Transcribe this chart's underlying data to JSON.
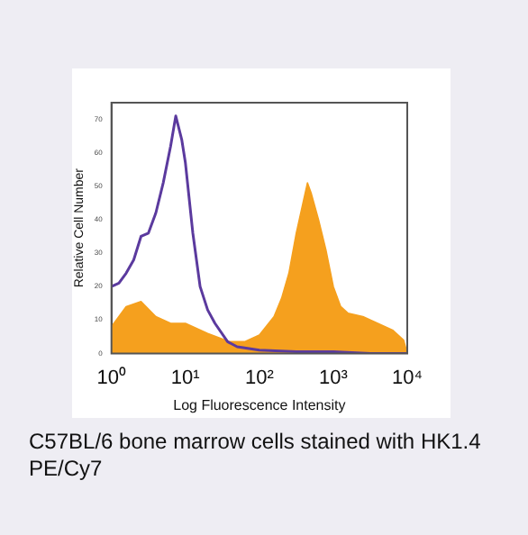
{
  "chart_data": {
    "type": "area",
    "xlabel": "Log Fluorescence Intensity",
    "ylabel": "Relative Cell Number",
    "log": "x",
    "grid": false,
    "legend": false,
    "marker": "none",
    "xlim": [
      1,
      10000
    ],
    "xticks": [
      {
        "value": 1,
        "label": "10⁰"
      },
      {
        "value": 10,
        "label": "10¹"
      },
      {
        "value": 100,
        "label": "10²"
      },
      {
        "value": 1000,
        "label": "10³"
      },
      {
        "value": 10000,
        "label": "10⁴"
      }
    ],
    "ylim": [
      0,
      75
    ],
    "yticks": [
      0,
      10,
      20,
      30,
      40,
      50,
      60,
      70
    ],
    "series": [
      {
        "color": "#f5a01e",
        "x": [
          1,
          1.58,
          2.51,
          3.98,
          6.31,
          10,
          20,
          39.8,
          63.1,
          100,
          158,
          200,
          251,
          316,
          398,
          447,
          501,
          631,
          794,
          1000,
          1259,
          1585,
          2512,
          3981,
          6310,
          8913,
          10000
        ],
        "values": [
          8,
          14,
          15.5,
          11,
          9,
          9,
          6,
          3.5,
          3.5,
          5.5,
          11,
          16.5,
          24,
          36,
          46,
          51,
          48,
          40,
          31,
          20,
          14,
          12,
          11,
          9,
          7,
          4,
          0
        ]
      },
      {
        "type": "line",
        "color": "#5b3a9e",
        "x": [
          1,
          1.26,
          1.58,
          2,
          2.51,
          3.16,
          3.98,
          5.01,
          6.31,
          7.41,
          8.91,
          10,
          12.6,
          15.8,
          20,
          25.1,
          37.2,
          50.1,
          100,
          316,
          1000,
          3162,
          10000
        ],
        "values": [
          20,
          21,
          24,
          28,
          35,
          36,
          42,
          51,
          62,
          71,
          64,
          57,
          36,
          20,
          13,
          9,
          3.5,
          2,
          1,
          0.5,
          0.5,
          0,
          0
        ]
      }
    ],
    "annotations": [
      "C57BL/6 bone marrow cells stained with HK1.4 PE/Cy7"
    ]
  }
}
